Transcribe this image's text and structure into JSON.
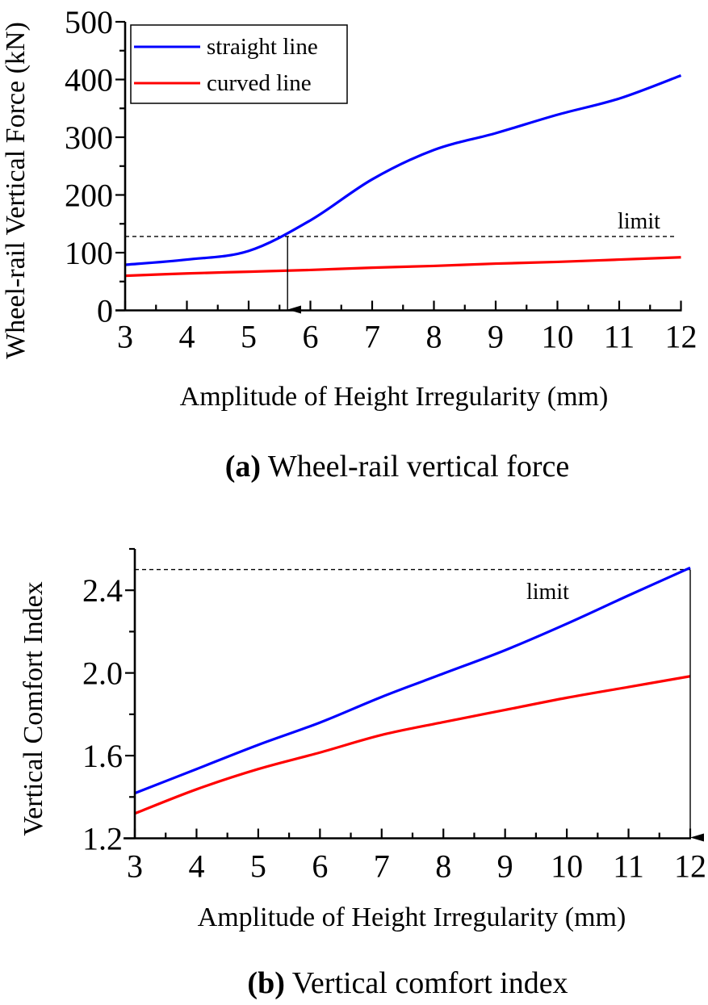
{
  "chart_data": [
    {
      "id": "a",
      "type": "line",
      "caption_label": "(a)",
      "caption_text": " Wheel-rail vertical force",
      "title": "",
      "xlabel": "Amplitude of Height Irregularity (mm)",
      "ylabel": "Wheel-rail Vertical Force (kN)",
      "xlim": [
        3,
        12
      ],
      "ylim": [
        0,
        500
      ],
      "xticks": [
        3,
        4,
        5,
        6,
        7,
        8,
        9,
        10,
        11,
        12
      ],
      "xtick_labels": [
        "3",
        "4",
        "5",
        "6",
        "7",
        "8",
        "9",
        "10",
        "11",
        "12"
      ],
      "yticks": [
        0,
        100,
        200,
        300,
        400,
        500
      ],
      "ytick_labels": [
        "0",
        "100",
        "200",
        "300",
        "400",
        "500"
      ],
      "grid": false,
      "legend": {
        "placement": "top-left",
        "entries": [
          {
            "label": "straight line",
            "color": "#0000ff"
          },
          {
            "label": "curved line",
            "color": "#ff0000"
          }
        ]
      },
      "x": [
        3,
        4,
        5,
        6,
        7,
        8,
        9,
        10,
        11,
        12
      ],
      "series": [
        {
          "name": "straight line",
          "color": "#0000ff",
          "values": [
            79,
            88,
            103,
            156,
            227,
            278,
            307,
            339,
            367,
            407
          ]
        },
        {
          "name": "curved line",
          "color": "#ff0000",
          "values": [
            60,
            64,
            67,
            70,
            74,
            77,
            81,
            84,
            88,
            92
          ]
        }
      ],
      "limit": {
        "label": "limit",
        "value": 128,
        "cross_x": 5.63
      }
    },
    {
      "id": "b",
      "type": "line",
      "caption_label": "(b)",
      "caption_text": " Vertical comfort index",
      "title": "",
      "xlabel": "Amplitude of Height Irregularity (mm)",
      "ylabel": "Vertical Comfort Index",
      "xlim": [
        3,
        12
      ],
      "ylim": [
        1.2,
        2.6
      ],
      "xticks": [
        3,
        4,
        5,
        6,
        7,
        8,
        9,
        10,
        11,
        12
      ],
      "xtick_labels": [
        "3",
        "4",
        "5",
        "6",
        "7",
        "8",
        "9",
        "10",
        "11",
        "12"
      ],
      "yticks": [
        1.2,
        1.6,
        2.0,
        2.4
      ],
      "ytick_labels": [
        "1.2",
        "1.6",
        "2.0",
        "2.4"
      ],
      "grid": false,
      "x": [
        3,
        4,
        5,
        6,
        7,
        8,
        9,
        10,
        11,
        12
      ],
      "series": [
        {
          "name": "straight line",
          "color": "#0000ff",
          "values": [
            1.418,
            1.535,
            1.652,
            1.76,
            1.884,
            1.997,
            2.11,
            2.238,
            2.375,
            2.509
          ]
        },
        {
          "name": "curved line",
          "color": "#ff0000",
          "values": [
            1.32,
            1.437,
            1.535,
            1.615,
            1.7,
            1.762,
            1.821,
            1.88,
            1.932,
            1.984
          ]
        }
      ],
      "limit": {
        "label": "limit",
        "value": 2.5,
        "cross_x": 12
      }
    }
  ]
}
